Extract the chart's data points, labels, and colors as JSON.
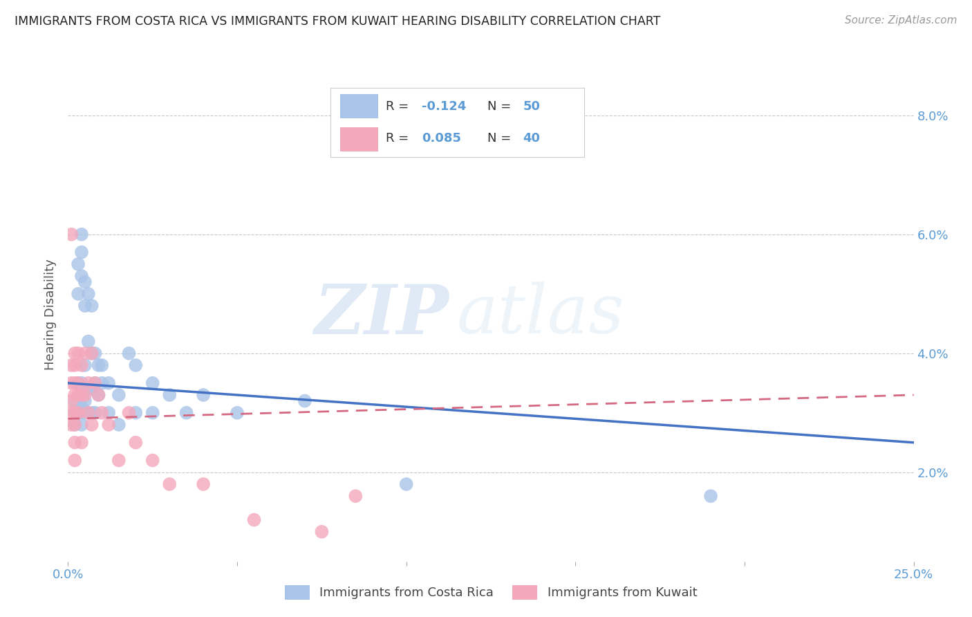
{
  "title": "IMMIGRANTS FROM COSTA RICA VS IMMIGRANTS FROM KUWAIT HEARING DISABILITY CORRELATION CHART",
  "source": "Source: ZipAtlas.com",
  "ylabel": "Hearing Disability",
  "xlim": [
    0.0,
    0.25
  ],
  "ylim": [
    0.005,
    0.088
  ],
  "xticks": [
    0.0,
    0.05,
    0.1,
    0.15,
    0.2,
    0.25
  ],
  "xticklabels": [
    "0.0%",
    "",
    "",
    "",
    "",
    "25.0%"
  ],
  "yticks": [
    0.02,
    0.04,
    0.06,
    0.08
  ],
  "yticklabels": [
    "2.0%",
    "4.0%",
    "6.0%",
    "8.0%"
  ],
  "color_blue": "#a8c4e8",
  "color_pink": "#f4a8bc",
  "line_blue": "#4472c4",
  "line_pink": "#d46880",
  "axis_color": "#5b9bd5",
  "grid_color": "#c8c8c8",
  "watermark_zip": "ZIP",
  "watermark_atlas": "atlas",
  "costa_rica_x": [
    0.002,
    0.002,
    0.002,
    0.003,
    0.003,
    0.003,
    0.003,
    0.004,
    0.004,
    0.004,
    0.004,
    0.004,
    0.004,
    0.004,
    0.005,
    0.005,
    0.005,
    0.005,
    0.005,
    0.005,
    0.006,
    0.006,
    0.006,
    0.007,
    0.007,
    0.007,
    0.007,
    0.008,
    0.008,
    0.008,
    0.009,
    0.009,
    0.01,
    0.01,
    0.012,
    0.012,
    0.015,
    0.015,
    0.018,
    0.02,
    0.02,
    0.025,
    0.025,
    0.03,
    0.035,
    0.04,
    0.05,
    0.07,
    0.1,
    0.19
  ],
  "costa_rica_y": [
    0.032,
    0.03,
    0.028,
    0.055,
    0.05,
    0.035,
    0.03,
    0.06,
    0.057,
    0.053,
    0.035,
    0.033,
    0.031,
    0.028,
    0.052,
    0.048,
    0.038,
    0.034,
    0.032,
    0.03,
    0.05,
    0.042,
    0.034,
    0.048,
    0.04,
    0.034,
    0.03,
    0.04,
    0.035,
    0.03,
    0.038,
    0.033,
    0.038,
    0.035,
    0.035,
    0.03,
    0.033,
    0.028,
    0.04,
    0.038,
    0.03,
    0.035,
    0.03,
    0.033,
    0.03,
    0.033,
    0.03,
    0.032,
    0.018,
    0.016
  ],
  "kuwait_x": [
    0.001,
    0.001,
    0.001,
    0.001,
    0.001,
    0.001,
    0.002,
    0.002,
    0.002,
    0.002,
    0.002,
    0.002,
    0.002,
    0.002,
    0.003,
    0.003,
    0.003,
    0.003,
    0.004,
    0.004,
    0.004,
    0.005,
    0.005,
    0.006,
    0.006,
    0.007,
    0.007,
    0.008,
    0.009,
    0.01,
    0.012,
    0.015,
    0.018,
    0.02,
    0.025,
    0.03,
    0.04,
    0.055,
    0.075,
    0.085
  ],
  "kuwait_y": [
    0.06,
    0.038,
    0.035,
    0.032,
    0.03,
    0.028,
    0.04,
    0.038,
    0.035,
    0.033,
    0.03,
    0.028,
    0.025,
    0.022,
    0.04,
    0.035,
    0.033,
    0.03,
    0.038,
    0.033,
    0.025,
    0.04,
    0.033,
    0.035,
    0.03,
    0.04,
    0.028,
    0.035,
    0.033,
    0.03,
    0.028,
    0.022,
    0.03,
    0.025,
    0.022,
    0.018,
    0.018,
    0.012,
    0.01,
    0.016
  ]
}
